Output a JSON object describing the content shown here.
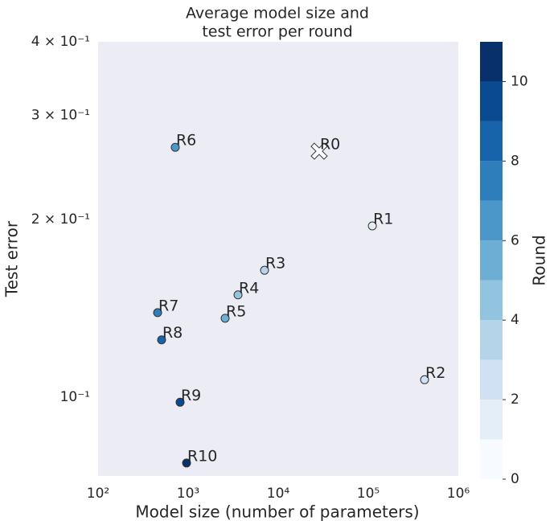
{
  "chart_data": {
    "type": "scatter",
    "title": [
      "Average model size and",
      "test error per round"
    ],
    "xlabel": "Model size (number of parameters)",
    "ylabel": "Test error",
    "xscale": "log",
    "yscale": "log",
    "xlim": [
      100,
      1000000
    ],
    "ylim": [
      0.0735,
      0.4
    ],
    "xticks": [
      {
        "value": 100,
        "label": "10²"
      },
      {
        "value": 1000,
        "label": "10³"
      },
      {
        "value": 10000,
        "label": "10⁴"
      },
      {
        "value": 100000,
        "label": "10⁵"
      },
      {
        "value": 1000000,
        "label": "10⁶"
      }
    ],
    "yticks": [
      {
        "value": 0.1,
        "label": "10⁻¹"
      },
      {
        "value": 0.2,
        "label": "2 × 10⁻¹"
      },
      {
        "value": 0.3,
        "label": "3 × 10⁻¹"
      },
      {
        "value": 0.4,
        "label": "4 × 10⁻¹"
      }
    ],
    "series": [
      {
        "labels": [
          "R0",
          "R1",
          "R2",
          "R3",
          "R4",
          "R5",
          "R6",
          "R7",
          "R8",
          "R9",
          "R10"
        ],
        "x": [
          28500,
          111000,
          422000,
          7050,
          3580,
          2575,
          719,
          458,
          507,
          814,
          960
        ],
        "values": [
          0.261,
          0.195,
          0.107,
          0.164,
          0.149,
          0.136,
          0.265,
          0.139,
          0.125,
          0.098,
          0.0773
        ],
        "rounds": [
          0,
          1,
          2,
          3,
          4,
          5,
          6,
          7,
          8,
          9,
          10
        ],
        "markers": [
          "X",
          "o",
          "o",
          "o",
          "o",
          "o",
          "o",
          "o",
          "o",
          "o",
          "o"
        ]
      }
    ],
    "colorbar": {
      "label": "Round",
      "lim": [
        0,
        11
      ],
      "ticks": [
        0,
        2,
        4,
        6,
        8,
        10
      ],
      "colors": [
        "#f7fbff",
        "#e3eef9",
        "#cfe1f2",
        "#b5d4e9",
        "#93c4df",
        "#6daed5",
        "#4b97c9",
        "#2f7ebc",
        "#1864aa",
        "#0a4a90",
        "#08306b"
      ]
    }
  }
}
